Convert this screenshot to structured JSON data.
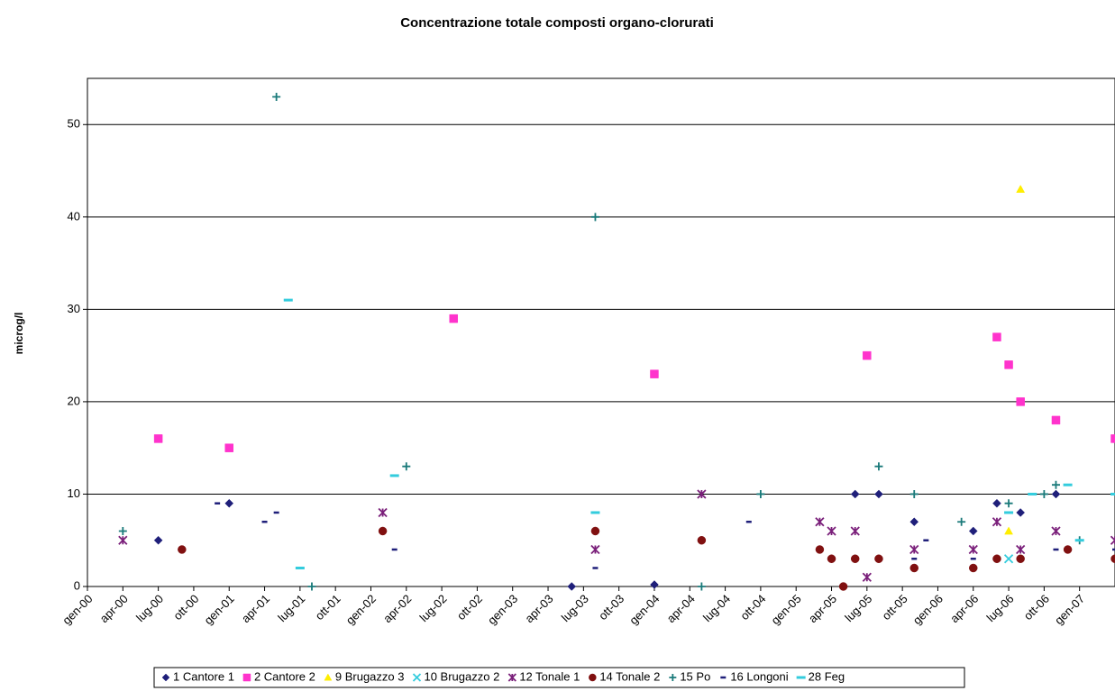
{
  "chart_data": {
    "type": "scatter",
    "title": "Concentrazione totale composti organo-clorurati",
    "y_label": "microg/l",
    "xlim": [
      "2000-01",
      "2007-04"
    ],
    "xticks": [
      {
        "value": "2000-01",
        "label": "gen-00"
      },
      {
        "value": "2000-04",
        "label": "apr-00"
      },
      {
        "value": "2000-07",
        "label": "lug-00"
      },
      {
        "value": "2000-10",
        "label": "ott-00"
      },
      {
        "value": "2001-01",
        "label": "gen-01"
      },
      {
        "value": "2001-04",
        "label": "apr-01"
      },
      {
        "value": "2001-07",
        "label": "lug-01"
      },
      {
        "value": "2001-10",
        "label": "ott-01"
      },
      {
        "value": "2002-01",
        "label": "gen-02"
      },
      {
        "value": "2002-04",
        "label": "apr-02"
      },
      {
        "value": "2002-07",
        "label": "lug-02"
      },
      {
        "value": "2002-10",
        "label": "ott-02"
      },
      {
        "value": "2003-01",
        "label": "gen-03"
      },
      {
        "value": "2003-04",
        "label": "apr-03"
      },
      {
        "value": "2003-07",
        "label": "lug-03"
      },
      {
        "value": "2003-10",
        "label": "ott-03"
      },
      {
        "value": "2004-01",
        "label": "gen-04"
      },
      {
        "value": "2004-04",
        "label": "apr-04"
      },
      {
        "value": "2004-07",
        "label": "lug-04"
      },
      {
        "value": "2004-10",
        "label": "ott-04"
      },
      {
        "value": "2005-01",
        "label": "gen-05"
      },
      {
        "value": "2005-04",
        "label": "apr-05"
      },
      {
        "value": "2005-07",
        "label": "lug-05"
      },
      {
        "value": "2005-10",
        "label": "ott-05"
      },
      {
        "value": "2006-01",
        "label": "gen-06"
      },
      {
        "value": "2006-04",
        "label": "apr-06"
      },
      {
        "value": "2006-07",
        "label": "lug-06"
      },
      {
        "value": "2006-10",
        "label": "ott-06"
      },
      {
        "value": "2007-01",
        "label": "gen-07"
      }
    ],
    "ylim": [
      0,
      55
    ],
    "yticks": [
      0,
      10,
      20,
      30,
      40,
      50
    ],
    "grid": true,
    "legend": "bottom",
    "series": [
      {
        "name": "1 Cantore 1",
        "color": "#1f1f7a",
        "marker": "diamond",
        "x": [
          "2000-07",
          "2001-01",
          "2003-06",
          "2004-01",
          "2005-04",
          "2005-06",
          "2005-06",
          "2005-08",
          "2005-08",
          "2005-11",
          "2006-04",
          "2006-06",
          "2006-06",
          "2006-08",
          "2006-11"
        ],
        "values": [
          5,
          9,
          0,
          0.2,
          3,
          10,
          3,
          10,
          3,
          7,
          6,
          9,
          3,
          8,
          10
        ]
      },
      {
        "name": "2 Cantore 2",
        "color": "#ff33cc",
        "marker": "square",
        "x": [
          "2000-07",
          "2001-01",
          "2002-08",
          "2004-01",
          "2005-07",
          "2006-06",
          "2006-07",
          "2006-08",
          "2006-11",
          "2007-04"
        ],
        "values": [
          16,
          15,
          29,
          23,
          25,
          27,
          24,
          20,
          18,
          16
        ]
      },
      {
        "name": "9 Brugazzo 3",
        "color": "#ffee00",
        "marker": "triangle",
        "x": [
          "2006-07",
          "2006-08"
        ],
        "values": [
          6,
          43
        ]
      },
      {
        "name": "10 Brugazzo 2",
        "color": "#33ccdd",
        "marker": "cross",
        "x": [
          "2006-07"
        ],
        "values": [
          3
        ]
      },
      {
        "name": "12 Tonale 1",
        "color": "#7a1f7a",
        "marker": "star",
        "x": [
          "2000-04",
          "2002-02",
          "2003-08",
          "2004-05",
          "2005-03",
          "2005-04",
          "2005-06",
          "2005-07",
          "2005-11",
          "2006-04",
          "2006-06",
          "2006-08",
          "2006-11",
          "2007-04"
        ],
        "values": [
          5,
          8,
          4,
          10,
          7,
          6,
          6,
          1,
          4,
          4,
          7,
          4,
          6,
          5
        ]
      },
      {
        "name": "14 Tonale 2",
        "color": "#801010",
        "marker": "circle",
        "x": [
          "2000-09",
          "2002-02",
          "2003-08",
          "2004-05",
          "2005-03",
          "2005-04",
          "2005-05",
          "2005-06",
          "2005-08",
          "2005-11",
          "2006-04",
          "2006-06",
          "2006-08",
          "2006-12",
          "2007-04"
        ],
        "values": [
          4,
          6,
          6,
          5,
          4,
          3,
          0,
          3,
          3,
          2,
          2,
          3,
          3,
          4,
          3
        ]
      },
      {
        "name": "15 Po",
        "color": "#1a7a7a",
        "marker": "plus",
        "x": [
          "2000-04",
          "2001-05",
          "2001-08",
          "2002-04",
          "2003-08",
          "2004-05",
          "2004-10",
          "2005-08",
          "2005-11",
          "2006-03",
          "2006-07",
          "2006-10",
          "2006-11",
          "2007-01"
        ],
        "values": [
          6,
          53,
          0,
          13,
          40,
          0,
          10,
          13,
          10,
          7,
          9,
          10,
          11,
          5
        ]
      },
      {
        "name": "16 Longoni",
        "color": "#1f1f7a",
        "marker": "dash",
        "x": [
          "2000-12",
          "2001-04",
          "2001-05",
          "2002-03",
          "2003-08",
          "2004-09",
          "2005-12",
          "2005-11",
          "2006-04",
          "2006-11",
          "2007-04"
        ],
        "values": [
          9,
          7,
          8,
          4,
          2,
          7,
          5,
          3,
          3,
          4,
          4
        ]
      },
      {
        "name": "28 Feg",
        "color": "#33ccdd",
        "marker": "longdash",
        "x": [
          "2001-06",
          "2001-07",
          "2002-03",
          "2003-08",
          "2006-07",
          "2006-09",
          "2006-12",
          "2007-01",
          "2007-04"
        ],
        "values": [
          31,
          2,
          12,
          8,
          8,
          10,
          11,
          5,
          10
        ]
      }
    ]
  }
}
